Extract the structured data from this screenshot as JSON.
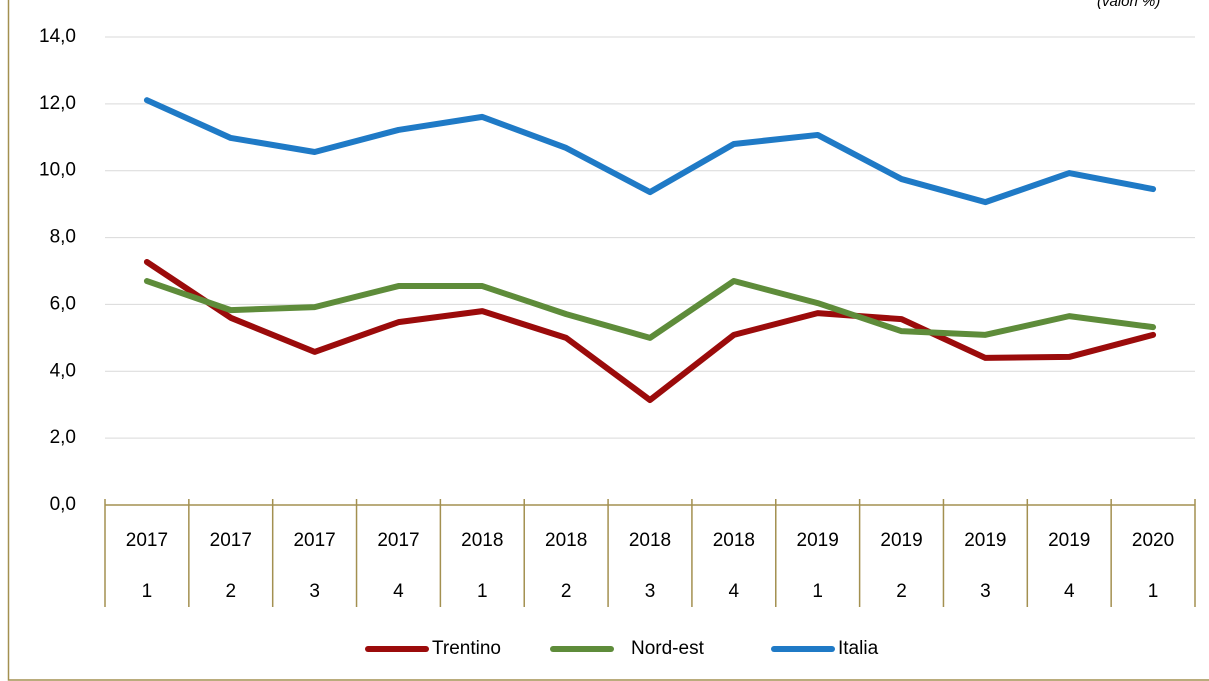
{
  "chart_data": {
    "type": "line",
    "note": "(valori %)",
    "categories": [
      {
        "year": "2017",
        "quarter": "1"
      },
      {
        "year": "2017",
        "quarter": "2"
      },
      {
        "year": "2017",
        "quarter": "3"
      },
      {
        "year": "2017",
        "quarter": "4"
      },
      {
        "year": "2018",
        "quarter": "1"
      },
      {
        "year": "2018",
        "quarter": "2"
      },
      {
        "year": "2018",
        "quarter": "3"
      },
      {
        "year": "2018",
        "quarter": "4"
      },
      {
        "year": "2019",
        "quarter": "1"
      },
      {
        "year": "2019",
        "quarter": "2"
      },
      {
        "year": "2019",
        "quarter": "3"
      },
      {
        "year": "2019",
        "quarter": "4"
      },
      {
        "year": "2020",
        "quarter": "1"
      }
    ],
    "series": [
      {
        "name": "Trentino",
        "color": "#9b0b0b",
        "values": [
          7.27,
          5.6,
          4.58,
          5.47,
          5.8,
          5.0,
          3.14,
          5.09,
          5.74,
          5.56,
          4.4,
          4.43,
          5.09
        ]
      },
      {
        "name": "Nord-est",
        "color": "#5e8c3a",
        "values": [
          6.7,
          5.83,
          5.92,
          6.55,
          6.55,
          5.71,
          5.0,
          6.7,
          6.04,
          5.2,
          5.09,
          5.65,
          5.32
        ]
      },
      {
        "name": "Italia",
        "color": "#1f7ac6",
        "values": [
          12.11,
          10.98,
          10.56,
          11.22,
          11.61,
          10.68,
          9.36,
          10.8,
          11.07,
          9.75,
          9.06,
          9.93,
          9.45
        ]
      }
    ],
    "ylim": [
      0,
      14
    ],
    "yticks": [
      {
        "value": 0,
        "label": "0,0"
      },
      {
        "value": 2,
        "label": "2,0"
      },
      {
        "value": 4,
        "label": "4,0"
      },
      {
        "value": 6,
        "label": "6,0"
      },
      {
        "value": 8,
        "label": "8,0"
      },
      {
        "value": 10,
        "label": "10,0"
      },
      {
        "value": 12,
        "label": "12,0"
      },
      {
        "value": 14,
        "label": "14,0"
      }
    ],
    "grid": true,
    "legend": "bottom"
  }
}
